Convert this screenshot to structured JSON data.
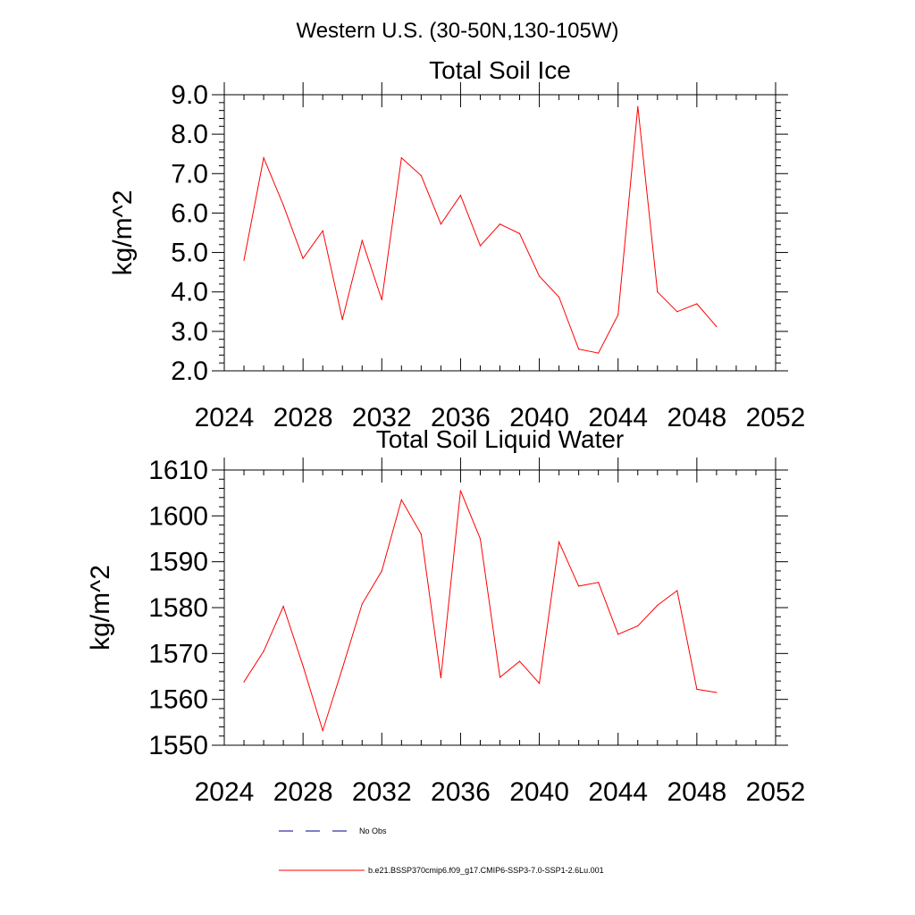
{
  "figure": {
    "title": "Western U.S. (30-50N,130-105W)"
  },
  "legend": {
    "entries": [
      {
        "label": "No Obs",
        "color": "#00008b",
        "dash": true
      },
      {
        "label": "b.e21.BSSP370cmip6.f09_g17.CMIP6-SSP3-7.0-SSP1-2.6Lu.001",
        "color": "#ff0000",
        "dash": false
      }
    ]
  },
  "chart_data": [
    {
      "type": "line",
      "title": "Total Soil Ice",
      "xlabel": "",
      "ylabel": "kg/m^2",
      "xlim": [
        2024,
        2052
      ],
      "ylim": [
        2.0,
        9.0
      ],
      "x_ticks": [
        "2024",
        "2028",
        "2032",
        "2036",
        "2040",
        "2044",
        "2048",
        "2052"
      ],
      "y_ticks": [
        "2.0",
        "3.0",
        "4.0",
        "5.0",
        "6.0",
        "7.0",
        "8.0",
        "9.0"
      ],
      "series": [
        {
          "color": "#ff0000",
          "x": [
            2025,
            2026,
            2027,
            2028,
            2029,
            2030,
            2031,
            2032,
            2033,
            2034,
            2035,
            2036,
            2037,
            2038,
            2039,
            2040,
            2041,
            2042,
            2043,
            2044,
            2045,
            2046,
            2047,
            2048,
            2049
          ],
          "values": [
            4.8,
            7.4,
            6.2,
            4.85,
            5.55,
            3.3,
            5.3,
            3.8,
            7.4,
            6.95,
            5.72,
            6.45,
            5.17,
            5.72,
            5.48,
            4.4,
            3.87,
            2.55,
            2.45,
            3.42,
            8.7,
            4.0,
            3.5,
            3.7,
            3.12
          ]
        }
      ]
    },
    {
      "type": "line",
      "title": "Total Soil Liquid Water",
      "xlabel": "",
      "ylabel": "kg/m^2",
      "xlim": [
        2024,
        2052
      ],
      "ylim": [
        1550,
        1610
      ],
      "x_ticks": [
        "2024",
        "2028",
        "2032",
        "2036",
        "2040",
        "2044",
        "2048",
        "2052"
      ],
      "y_ticks": [
        "1550",
        "1560",
        "1570",
        "1580",
        "1590",
        "1600",
        "1610"
      ],
      "series": [
        {
          "color": "#ff0000",
          "x": [
            2025,
            2026,
            2027,
            2028,
            2029,
            2030,
            2031,
            2032,
            2033,
            2034,
            2035,
            2036,
            2037,
            2038,
            2039,
            2040,
            2041,
            2042,
            2043,
            2044,
            2045,
            2046,
            2047,
            2048,
            2049
          ],
          "values": [
            1563.8,
            1570.5,
            1580.3,
            1567.3,
            1553.2,
            1566.8,
            1580.8,
            1588.0,
            1603.5,
            1596.0,
            1564.7,
            1605.5,
            1595.0,
            1564.8,
            1568.3,
            1563.5,
            1594.3,
            1584.7,
            1585.5,
            1574.2,
            1576.0,
            1580.5,
            1583.7,
            1562.2,
            1561.5
          ]
        }
      ]
    }
  ]
}
